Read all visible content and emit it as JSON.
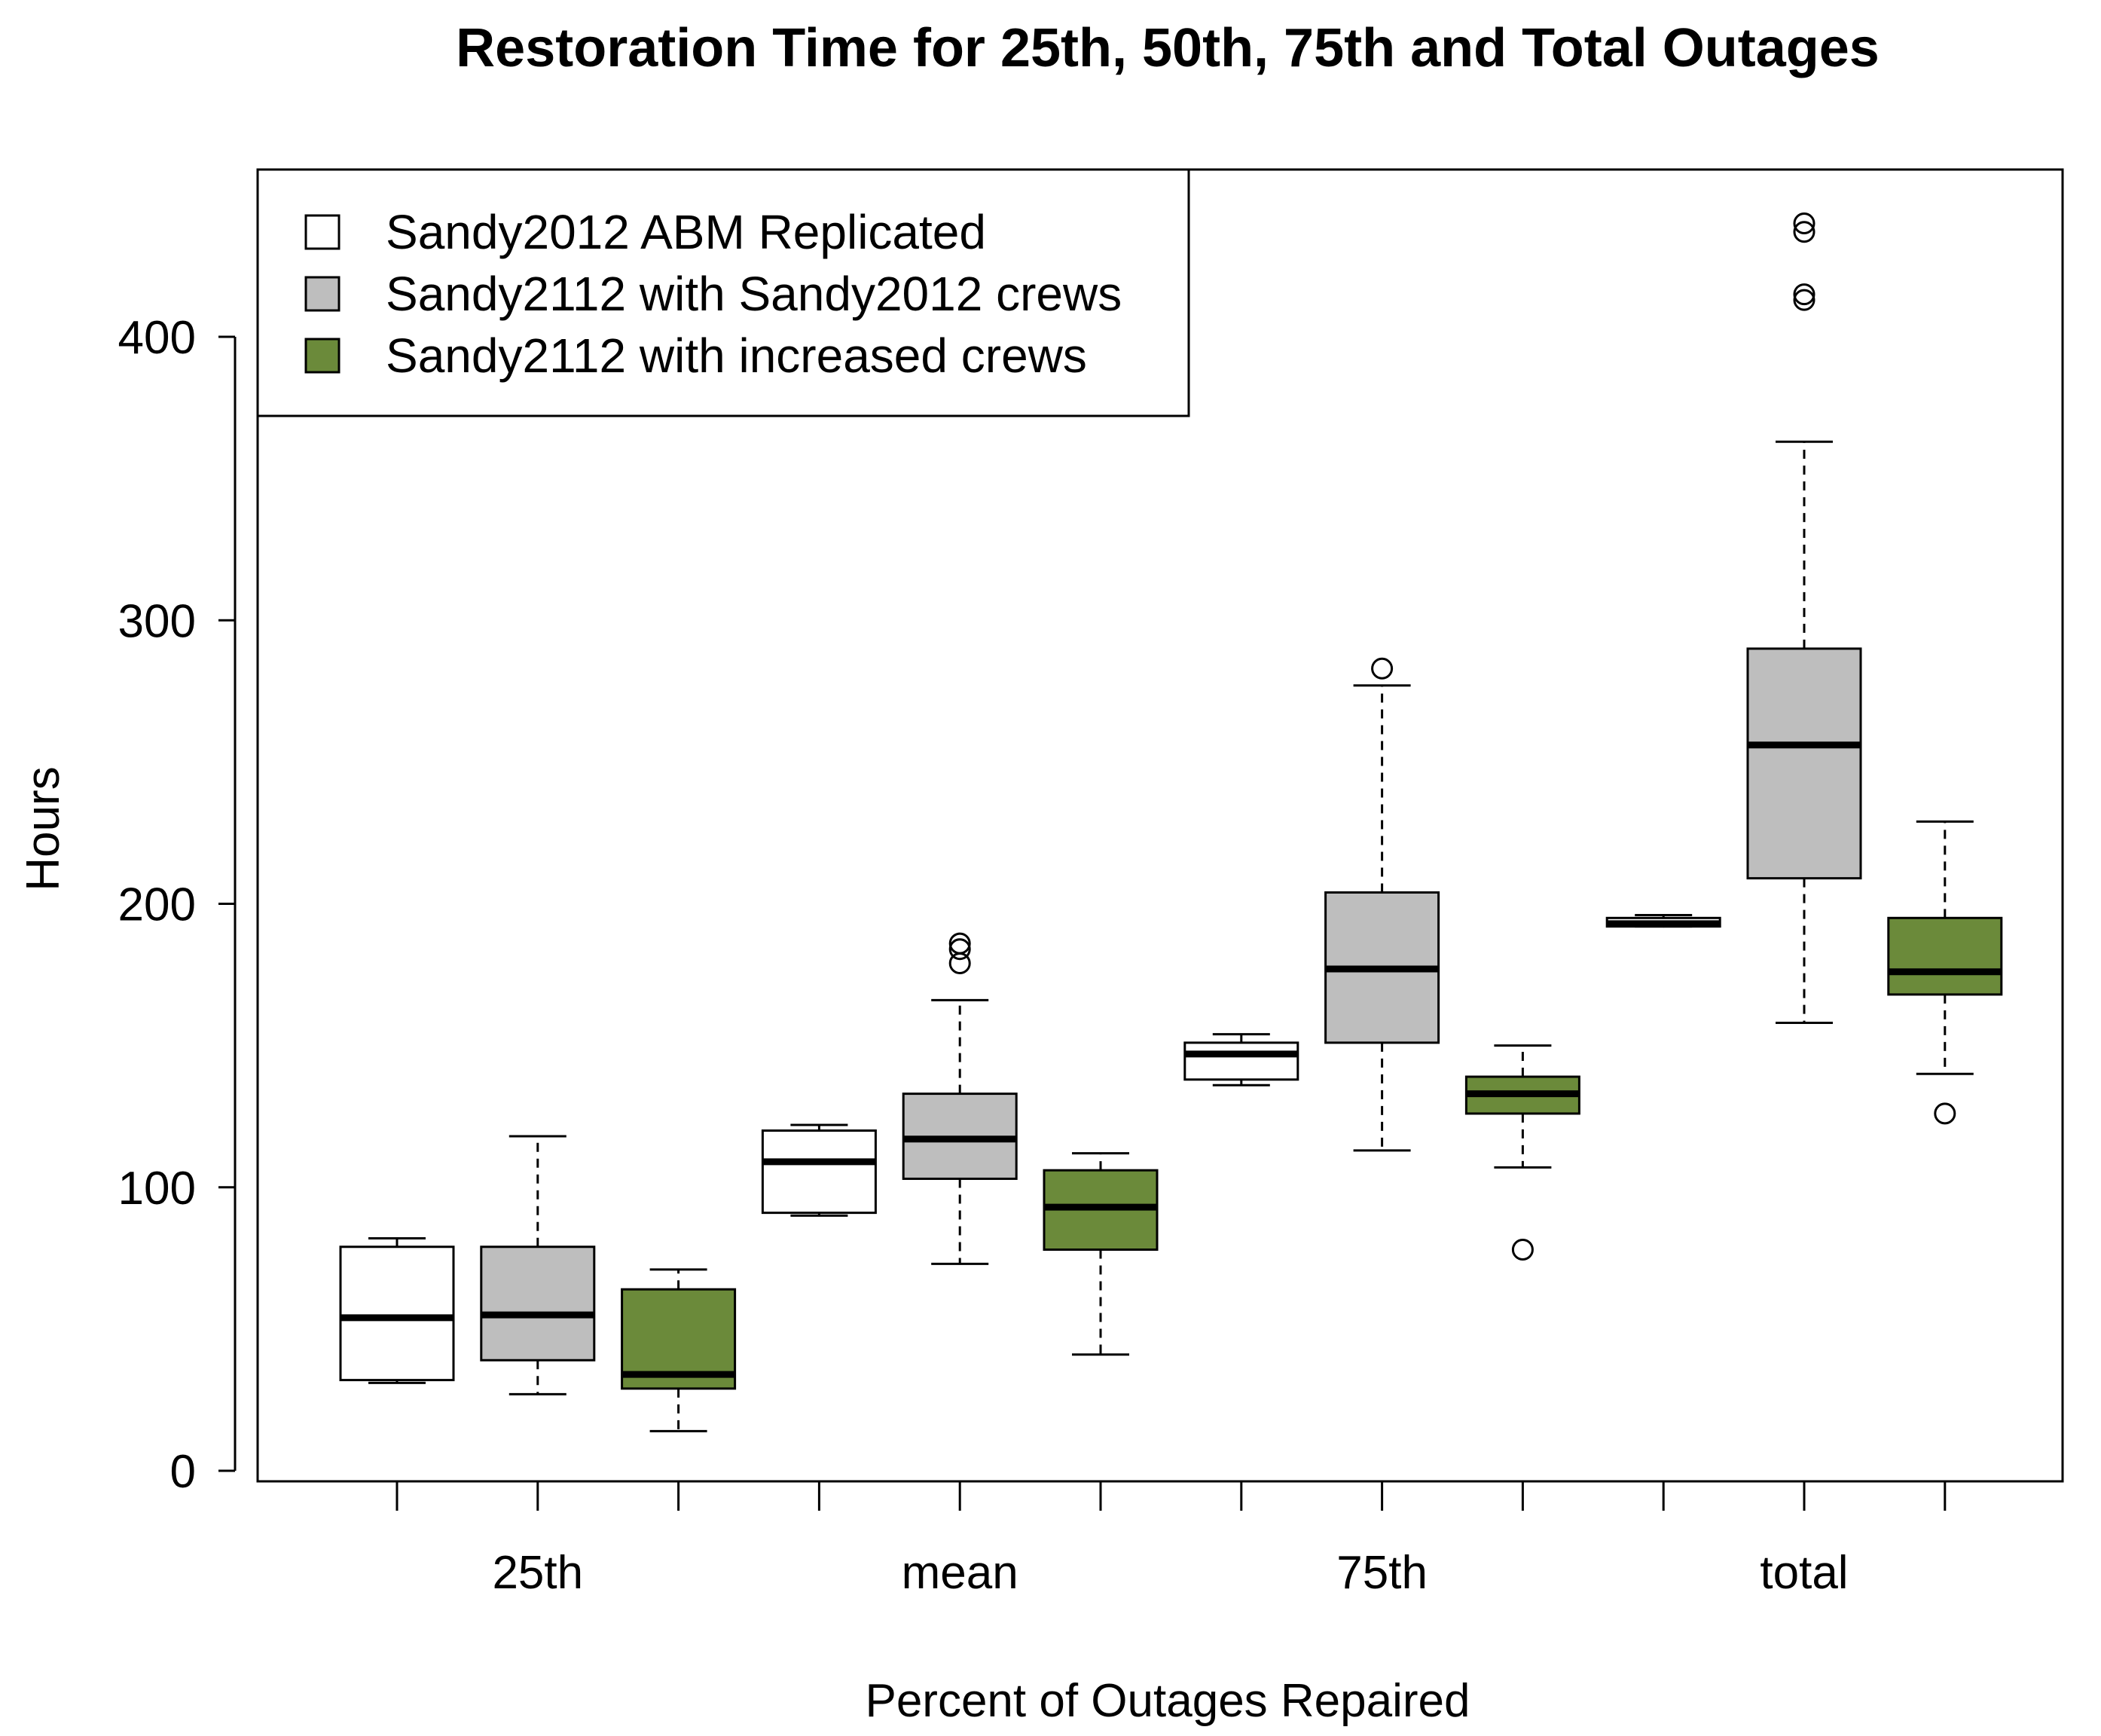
{
  "chart_data": {
    "type": "box",
    "title": "Restoration Time for 25th, 50th, 75th and Total Outages",
    "xlabel": "Percent of Outages Repaired",
    "ylabel": "Hours",
    "ylim": [
      0,
      460
    ],
    "yticks": [
      0,
      100,
      200,
      300,
      400
    ],
    "categories": [
      "25th",
      "mean",
      "75th",
      "total"
    ],
    "legend_position": "top-left",
    "series": [
      {
        "name": "Sandy2012 ABM Replicated",
        "color": "#ffffff",
        "boxes": [
          {
            "min": 31,
            "q1": 32,
            "median": 54,
            "q3": 79,
            "max": 82,
            "outliers": []
          },
          {
            "min": 90,
            "q1": 91,
            "median": 109,
            "q3": 120,
            "max": 122,
            "outliers": []
          },
          {
            "min": 136,
            "q1": 138,
            "median": 147,
            "q3": 151,
            "max": 154,
            "outliers": []
          },
          {
            "min": 192,
            "q1": 192,
            "median": 193,
            "q3": 195,
            "max": 196,
            "outliers": []
          }
        ]
      },
      {
        "name": "Sandy2112 with Sandy2012 crews",
        "color": "#bebebe",
        "boxes": [
          {
            "min": 27,
            "q1": 39,
            "median": 55,
            "q3": 79,
            "max": 118,
            "outliers": []
          },
          {
            "min": 73,
            "q1": 103,
            "median": 117,
            "q3": 133,
            "max": 166,
            "outliers": [
              179,
              184,
              186
            ]
          },
          {
            "min": 113,
            "q1": 151,
            "median": 177,
            "q3": 204,
            "max": 277,
            "outliers": [
              283
            ]
          },
          {
            "min": 158,
            "q1": 209,
            "median": 256,
            "q3": 290,
            "max": 363,
            "outliers": [
              413,
              415,
              437,
              440
            ]
          }
        ]
      },
      {
        "name": "Sandy2112 with increased crews",
        "color": "#6b8a3a",
        "boxes": [
          {
            "min": 14,
            "q1": 29,
            "median": 34,
            "q3": 64,
            "max": 71,
            "outliers": []
          },
          {
            "min": 41,
            "q1": 78,
            "median": 93,
            "q3": 106,
            "max": 112,
            "outliers": []
          },
          {
            "min": 107,
            "q1": 126,
            "median": 133,
            "q3": 139,
            "max": 150,
            "outliers": [
              78
            ]
          },
          {
            "min": 140,
            "q1": 168,
            "median": 176,
            "q3": 195,
            "max": 229,
            "outliers": [
              126
            ]
          }
        ]
      }
    ]
  }
}
